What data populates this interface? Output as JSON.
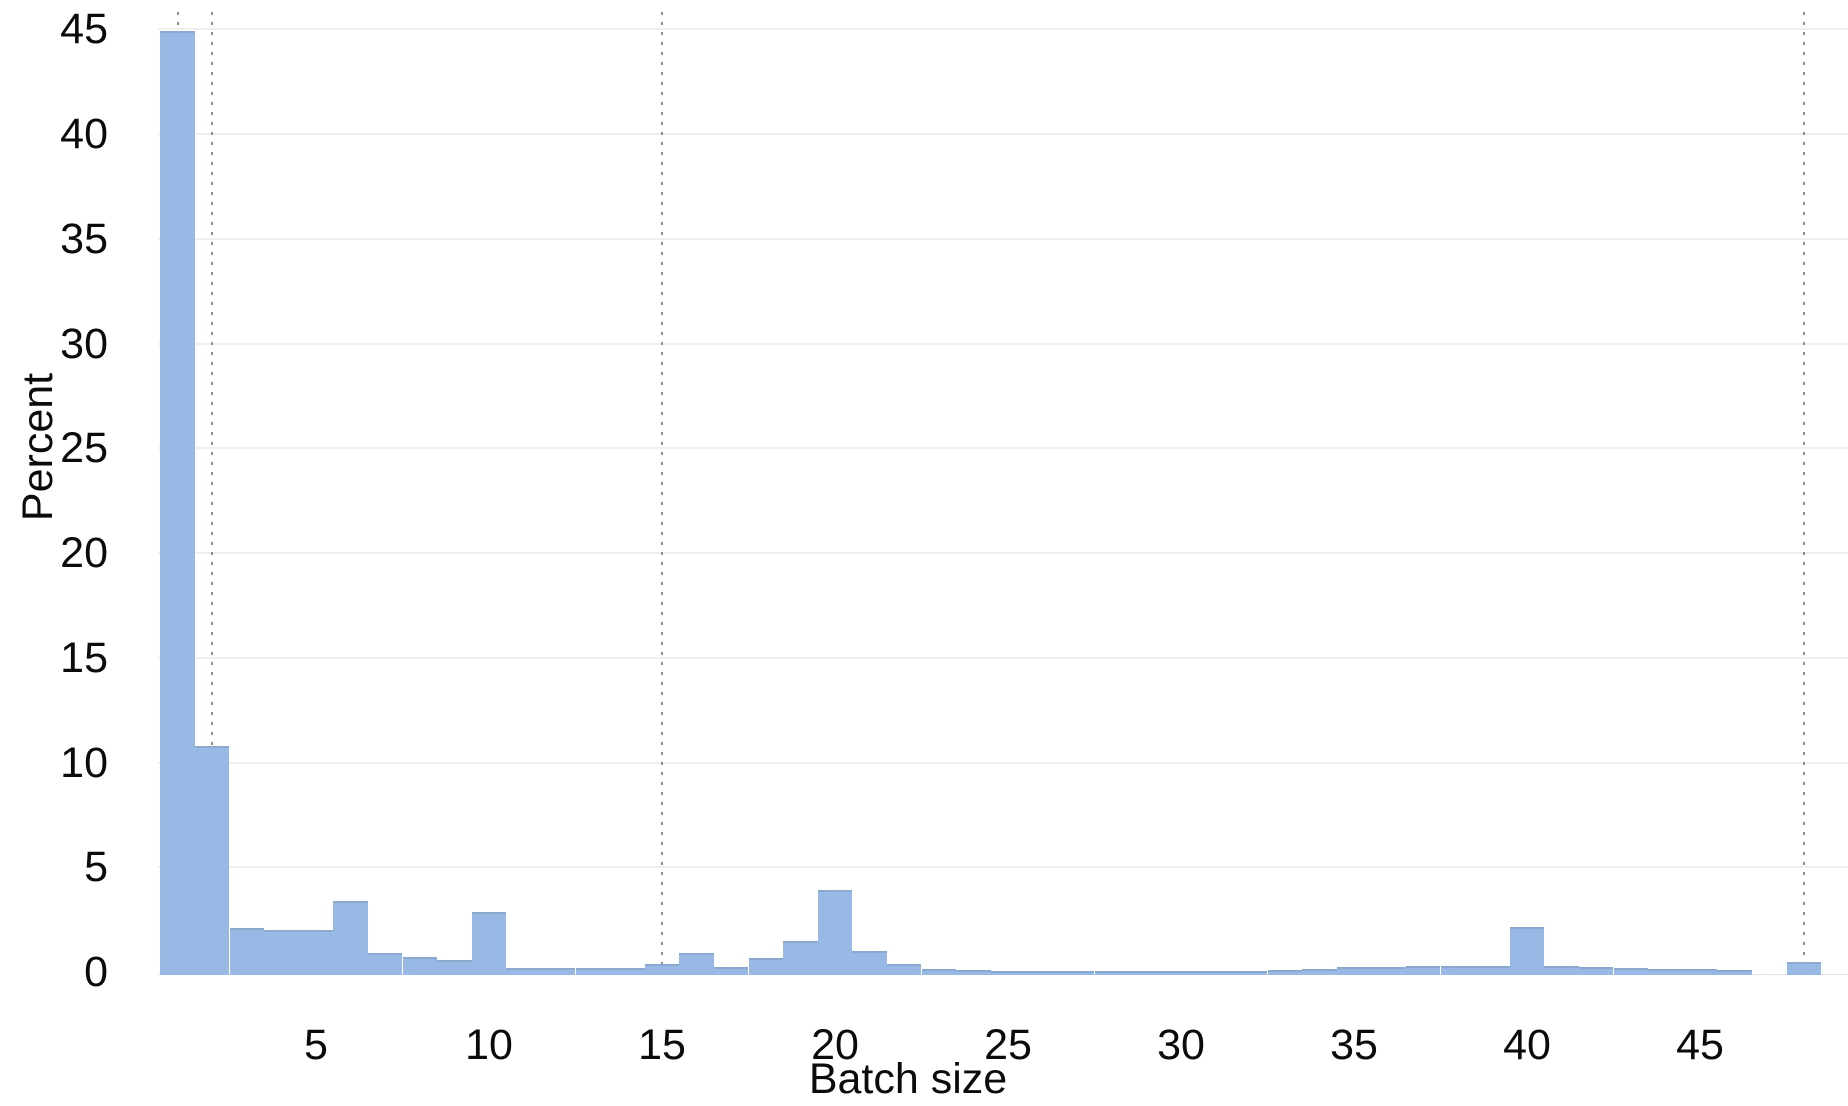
{
  "chart_data": {
    "type": "bar",
    "subtype": "histogram",
    "title": "",
    "xlabel": "Batch size",
    "ylabel": "Percent",
    "x": [
      1,
      2,
      3,
      4,
      5,
      6,
      7,
      8,
      9,
      10,
      11,
      12,
      13,
      14,
      15,
      16,
      17,
      18,
      19,
      20,
      21,
      22,
      23,
      24,
      25,
      26,
      27,
      28,
      29,
      30,
      31,
      32,
      33,
      34,
      35,
      36,
      37,
      38,
      39,
      40,
      41,
      42,
      43,
      44,
      45,
      46,
      47,
      48
    ],
    "values": [
      44.9,
      10.8,
      2.1,
      2.0,
      2.0,
      3.4,
      0.9,
      0.7,
      0.55,
      2.85,
      0.2,
      0.2,
      0.2,
      0.2,
      0.4,
      0.9,
      0.25,
      0.65,
      1.5,
      3.9,
      1.0,
      0.4,
      0.15,
      0.1,
      0.05,
      0.05,
      0.05,
      0.05,
      0.05,
      0.05,
      0.05,
      0.05,
      0.1,
      0.15,
      0.25,
      0.25,
      0.3,
      0.3,
      0.3,
      2.15,
      0.3,
      0.25,
      0.2,
      0.15,
      0.15,
      0.1,
      0,
      0.5
    ],
    "bin_width": 1,
    "x_ticks": [
      5,
      10,
      15,
      20,
      25,
      30,
      35,
      40,
      45
    ],
    "y_ticks": [
      0,
      5,
      10,
      15,
      20,
      25,
      30,
      35,
      40,
      45
    ],
    "ylim": [
      0,
      45
    ],
    "xlim": [
      0.5,
      49.5
    ],
    "reference_lines_x": [
      1,
      2,
      15,
      48
    ],
    "grid": "horizontal",
    "legend": "none",
    "bar_color": "#98b8e6",
    "bar_edge_color": "#8aa9cf",
    "reference_line_color": "#8f8f8f",
    "grid_color": "#efefef",
    "text_color": "#0b0b0b",
    "background_color": "#ffffff"
  }
}
